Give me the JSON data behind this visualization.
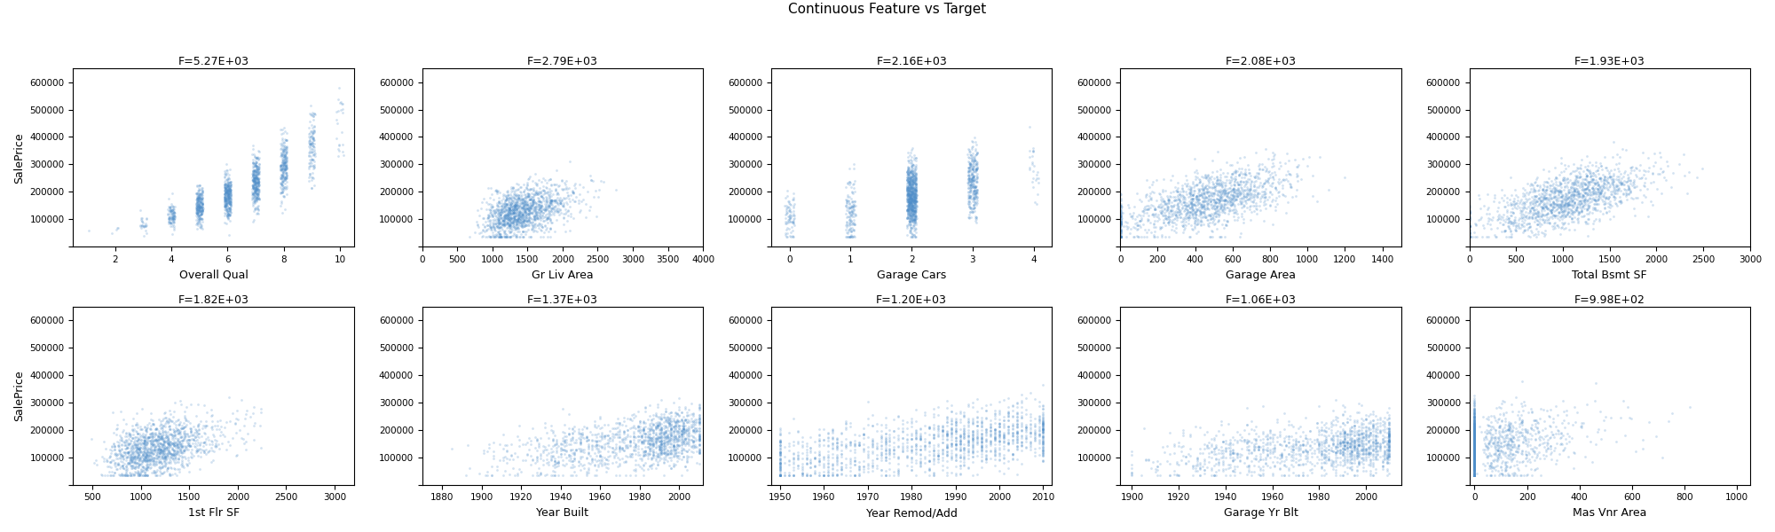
{
  "title": "Continuous Feature vs Target",
  "nrows": 2,
  "ncols": 5,
  "figsize": [
    20,
    6
  ],
  "dpi": 100,
  "subplots": [
    {
      "feature": "Overall Qual",
      "f_stat": "F=5.27E+03",
      "ylabel": "SalePrice",
      "xlabel": "Overall Qual",
      "ylim": [
        0,
        650000
      ],
      "xlim": [
        0.5,
        10.5
      ]
    },
    {
      "feature": "Gr Liv Area",
      "f_stat": "F=2.79E+03",
      "ylabel": "",
      "xlabel": "Gr Liv Area",
      "ylim": [
        0,
        650000
      ],
      "xlim": [
        0,
        4000
      ]
    },
    {
      "feature": "Garage Cars",
      "f_stat": "F=2.16E+03",
      "ylabel": "",
      "xlabel": "Garage Cars",
      "ylim": [
        0,
        650000
      ],
      "xlim": [
        -0.3,
        4.3
      ]
    },
    {
      "feature": "Garage Area",
      "f_stat": "F=2.08E+03",
      "ylabel": "",
      "xlabel": "Garage Area",
      "ylim": [
        0,
        650000
      ],
      "xlim": [
        0,
        1500
      ]
    },
    {
      "feature": "Total Bsmt SF",
      "f_stat": "F=1.93E+03",
      "ylabel": "",
      "xlabel": "Total Bsmt SF",
      "ylim": [
        0,
        650000
      ],
      "xlim": [
        0,
        3000
      ]
    },
    {
      "feature": "1st Flr SF",
      "f_stat": "F=1.82E+03",
      "ylabel": "SalePrice",
      "xlabel": "1st Flr SF",
      "ylim": [
        0,
        650000
      ],
      "xlim": [
        300,
        3200
      ]
    },
    {
      "feature": "Year Built",
      "f_stat": "F=1.37E+03",
      "ylabel": "",
      "xlabel": "Year Built",
      "ylim": [
        0,
        650000
      ],
      "xlim": [
        1870,
        2012
      ]
    },
    {
      "feature": "Year Remod/Add",
      "f_stat": "F=1.20E+03",
      "ylabel": "",
      "xlabel": "Year Remod/Add",
      "ylim": [
        0,
        650000
      ],
      "xlim": [
        1948,
        2012
      ]
    },
    {
      "feature": "Garage Yr Blt",
      "f_stat": "F=1.06E+03",
      "ylabel": "",
      "xlabel": "Garage Yr Blt",
      "ylim": [
        0,
        650000
      ],
      "xlim": [
        1895,
        2015
      ]
    },
    {
      "feature": "Mas Vnr Area",
      "f_stat": "F=9.98E+02",
      "ylabel": "",
      "xlabel": "Mas Vnr Area",
      "ylim": [
        0,
        650000
      ],
      "xlim": [
        -20,
        1050
      ]
    }
  ],
  "dot_color": "#4f8ec9",
  "dot_alpha": 0.25,
  "dot_size": 4
}
